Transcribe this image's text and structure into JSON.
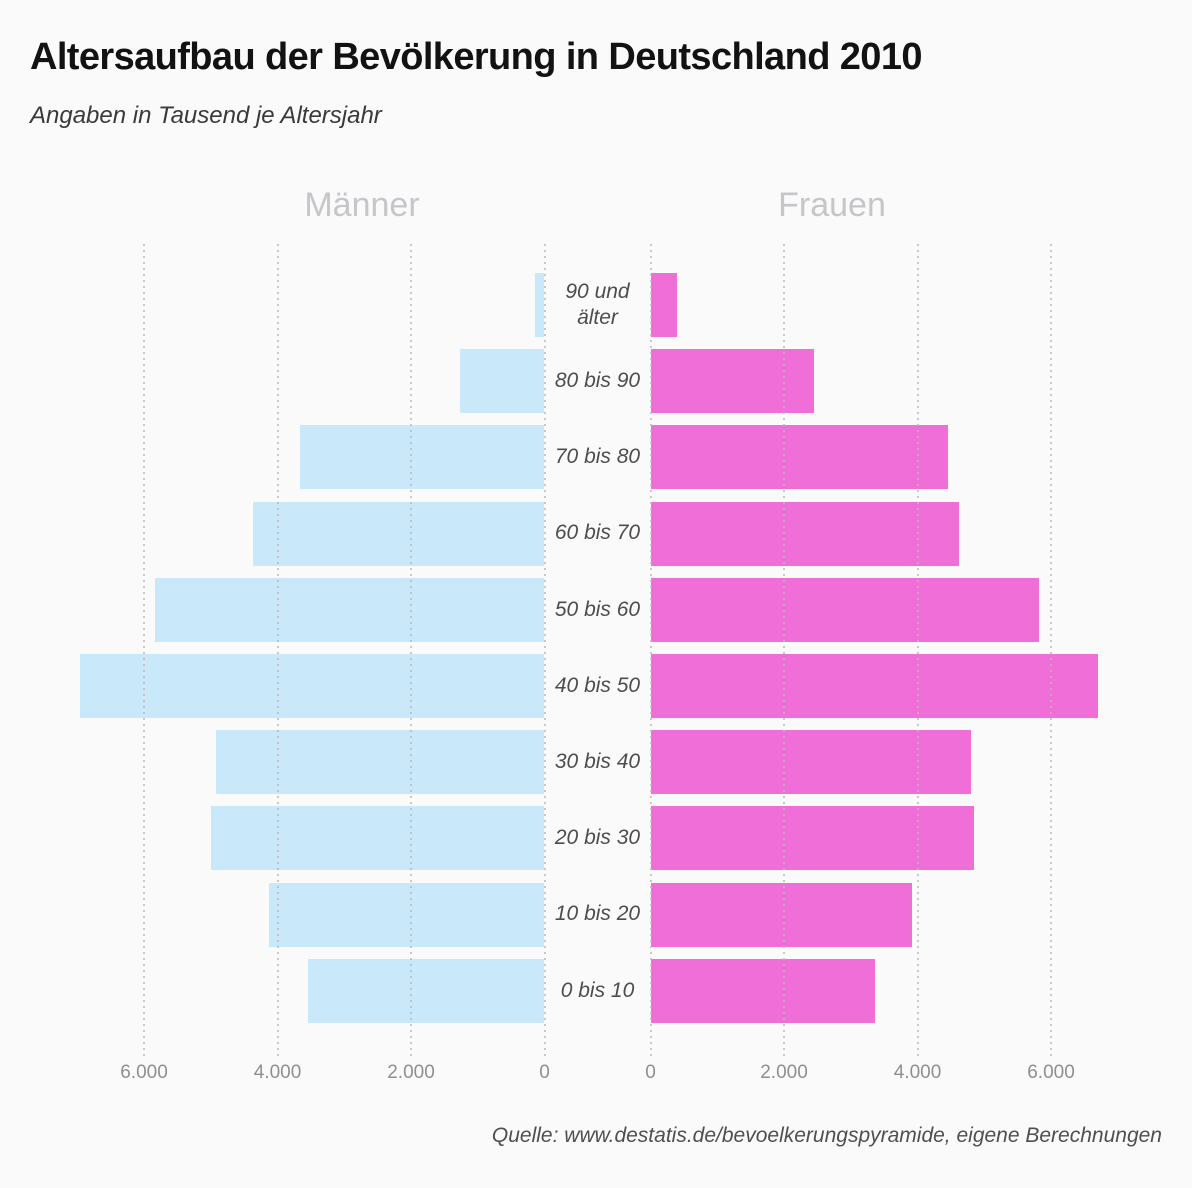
{
  "title": "Altersaufbau der Bevölkerung in Deutschland 2010",
  "subtitle": "Angaben in Tausend je Altersjahr",
  "source": "Quelle: www.destatis.de/bevoelkerungspyramide, eigene Berechnungen",
  "colors": {
    "background": "#fafafa",
    "male_bar": "#c9e9fa",
    "female_bar": "#f06ed8",
    "gridline": "#b9b9b9",
    "header_text": "#c6c6ca",
    "label_text": "#4d4d4d",
    "tick_text": "#8f8f8f"
  },
  "chart_data": {
    "type": "bar",
    "variant": "population-pyramid",
    "orientation": "horizontal",
    "unit": "Tausend",
    "title": "Altersaufbau der Bevölkerung in Deutschland 2010",
    "subtitle": "Angaben in Tausend je Altersjahr",
    "group_labels": {
      "left": "Männer",
      "right": "Frauen"
    },
    "categories": [
      "90 und älter",
      "80 bis 90",
      "70 bis 80",
      "60 bis 70",
      "50 bis 60",
      "40 bis 50",
      "30 bis 40",
      "20 bis 30",
      "10 bis 20",
      "0 bis 10"
    ],
    "series": [
      {
        "name": "Männer",
        "side": "left",
        "color": "#c9e9fa",
        "values": [
          140,
          1270,
          3670,
          4380,
          5850,
          6980,
          4930,
          5010,
          4140,
          3550
        ]
      },
      {
        "name": "Frauen",
        "side": "right",
        "color": "#f06ed8",
        "values": [
          400,
          2450,
          4460,
          4630,
          5830,
          6720,
          4810,
          4850,
          3920,
          3370
        ]
      }
    ],
    "x_axis": {
      "ticks_left": [
        "6.000",
        "4.000",
        "2.000",
        "0"
      ],
      "ticks_left_values": [
        6000,
        4000,
        2000,
        0
      ],
      "ticks_right": [
        "0",
        "2.000",
        "4.000",
        "6.000"
      ],
      "ticks_right_values": [
        0,
        2000,
        4000,
        6000
      ],
      "max": 7000,
      "grid": "dotted-vertical"
    }
  }
}
